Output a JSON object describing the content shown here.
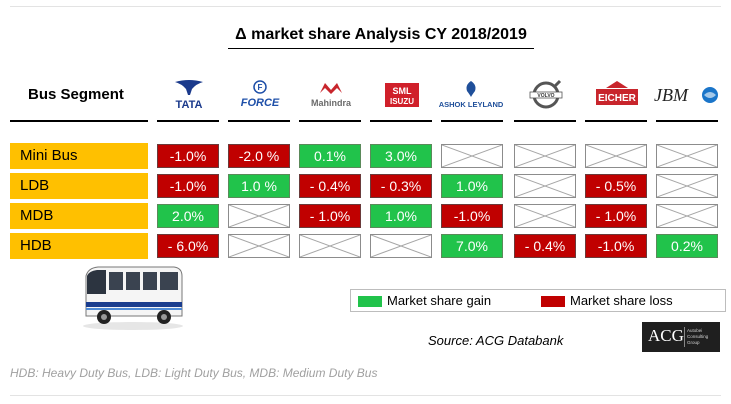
{
  "title": "Δ market share Analysis CY 2018/2019",
  "segment_header": "Bus Segment",
  "brands": [
    {
      "name": "TATA",
      "logo_text": "TATA",
      "color": "#1b3a8c"
    },
    {
      "name": "FORCE",
      "logo_text": "FORCE",
      "color": "#1e4fa8"
    },
    {
      "name": "Mahindra",
      "logo_text": "Mahindra",
      "color": "#6b6b6b"
    },
    {
      "name": "SML ISUZU",
      "logo_text": "SML ISUZU",
      "color": "#d0202a"
    },
    {
      "name": "ASHOK LEYLAND",
      "logo_text": "ASHOK LEYLAND",
      "color": "#1f4f9a"
    },
    {
      "name": "VOLVO",
      "logo_text": "VOLVO",
      "color": "#555555"
    },
    {
      "name": "EICHER",
      "logo_text": "EICHER",
      "color": "#c8252c"
    },
    {
      "name": "JBM",
      "logo_text": "JBM",
      "color": "#222222"
    }
  ],
  "chart_data": {
    "type": "table",
    "title": "Δ market share Analysis CY 2018/2019",
    "columns": [
      "TATA",
      "FORCE",
      "Mahindra",
      "SML ISUZU",
      "ASHOK LEYLAND",
      "VOLVO",
      "EICHER",
      "JBM"
    ],
    "rows": [
      {
        "segment": "Mini Bus",
        "cells": [
          {
            "text": "-1.0%",
            "value": -1.0,
            "status": "loss"
          },
          {
            "text": "-2.0 %",
            "value": -2.0,
            "status": "loss"
          },
          {
            "text": "0.1%",
            "value": 0.1,
            "status": "gain"
          },
          {
            "text": "3.0%",
            "value": 3.0,
            "status": "gain"
          },
          {
            "text": "",
            "value": null,
            "status": "na"
          },
          {
            "text": "",
            "value": null,
            "status": "na"
          },
          {
            "text": "",
            "value": null,
            "status": "na"
          },
          {
            "text": "",
            "value": null,
            "status": "na"
          }
        ]
      },
      {
        "segment": "LDB",
        "cells": [
          {
            "text": "-1.0%",
            "value": -1.0,
            "status": "loss"
          },
          {
            "text": "1.0 %",
            "value": 1.0,
            "status": "gain"
          },
          {
            "text": "- 0.4%",
            "value": -0.4,
            "status": "loss"
          },
          {
            "text": "- 0.3%",
            "value": -0.3,
            "status": "loss"
          },
          {
            "text": "1.0%",
            "value": 1.0,
            "status": "gain"
          },
          {
            "text": "",
            "value": null,
            "status": "na"
          },
          {
            "text": "- 0.5%",
            "value": -0.5,
            "status": "loss"
          },
          {
            "text": "",
            "value": null,
            "status": "na"
          }
        ]
      },
      {
        "segment": "MDB",
        "cells": [
          {
            "text": "2.0%",
            "value": 2.0,
            "status": "gain"
          },
          {
            "text": "",
            "value": null,
            "status": "na"
          },
          {
            "text": "- 1.0%",
            "value": -1.0,
            "status": "loss"
          },
          {
            "text": "1.0%",
            "value": 1.0,
            "status": "gain"
          },
          {
            "text": "-1.0%",
            "value": -1.0,
            "status": "loss"
          },
          {
            "text": "",
            "value": null,
            "status": "na"
          },
          {
            "text": "- 1.0%",
            "value": -1.0,
            "status": "loss"
          },
          {
            "text": "",
            "value": null,
            "status": "na"
          }
        ]
      },
      {
        "segment": "HDB",
        "cells": [
          {
            "text": "- 6.0%",
            "value": -6.0,
            "status": "loss"
          },
          {
            "text": "",
            "value": null,
            "status": "na"
          },
          {
            "text": "",
            "value": null,
            "status": "na"
          },
          {
            "text": "",
            "value": null,
            "status": "na"
          },
          {
            "text": "7.0%",
            "value": 7.0,
            "status": "gain"
          },
          {
            "text": "- 0.4%",
            "value": -0.4,
            "status": "loss"
          },
          {
            "text": "-1.0%",
            "value": -1.0,
            "status": "loss"
          },
          {
            "text": "0.2%",
            "value": 0.2,
            "status": "gain"
          }
        ]
      }
    ]
  },
  "legend": {
    "gain_label": "Market share gain",
    "loss_label": "Market share loss",
    "gain_color": "#21c34b",
    "loss_color": "#c00000"
  },
  "source": "Source: ACG Databank",
  "acg_logo": {
    "big": "ACG",
    "small": "Autobei Consulting Group"
  },
  "footnote": "HDB: Heavy Duty Bus, LDB: Light Duty Bus, MDB: Medium Duty Bus",
  "bus_icon": "bus-icon"
}
